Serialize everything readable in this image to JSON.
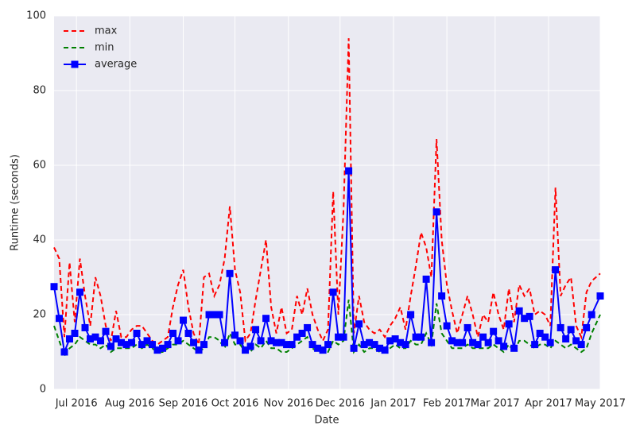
{
  "chart_data": {
    "type": "line",
    "xlabel": "Date",
    "ylabel": "Runtime (seconds)",
    "x": [
      "2016-06-18",
      "2016-06-21",
      "2016-06-24",
      "2016-06-27",
      "2016-06-30",
      "2016-07-03",
      "2016-07-06",
      "2016-07-09",
      "2016-07-12",
      "2016-07-15",
      "2016-07-18",
      "2016-07-21",
      "2016-07-24",
      "2016-07-27",
      "2016-07-30",
      "2016-08-02",
      "2016-08-05",
      "2016-08-08",
      "2016-08-11",
      "2016-08-14",
      "2016-08-17",
      "2016-08-20",
      "2016-08-23",
      "2016-08-26",
      "2016-08-29",
      "2016-09-01",
      "2016-09-04",
      "2016-09-07",
      "2016-09-10",
      "2016-09-13",
      "2016-09-16",
      "2016-09-19",
      "2016-09-22",
      "2016-09-25",
      "2016-09-28",
      "2016-10-01",
      "2016-10-04",
      "2016-10-07",
      "2016-10-10",
      "2016-10-13",
      "2016-10-16",
      "2016-10-19",
      "2016-10-22",
      "2016-10-25",
      "2016-10-28",
      "2016-10-31",
      "2016-11-03",
      "2016-11-06",
      "2016-11-09",
      "2016-11-12",
      "2016-11-15",
      "2016-11-18",
      "2016-11-21",
      "2016-11-24",
      "2016-11-27",
      "2016-11-30",
      "2016-12-03",
      "2016-12-06",
      "2016-12-09",
      "2016-12-12",
      "2016-12-15",
      "2016-12-18",
      "2016-12-21",
      "2016-12-24",
      "2016-12-27",
      "2016-12-30",
      "2017-01-02",
      "2017-01-05",
      "2017-01-08",
      "2017-01-11",
      "2017-01-14",
      "2017-01-17",
      "2017-01-20",
      "2017-01-23",
      "2017-01-26",
      "2017-01-29",
      "2017-02-01",
      "2017-02-04",
      "2017-02-07",
      "2017-02-10",
      "2017-02-13",
      "2017-02-16",
      "2017-02-19",
      "2017-02-22",
      "2017-02-25",
      "2017-02-28",
      "2017-03-03",
      "2017-03-06",
      "2017-03-09",
      "2017-03-12",
      "2017-03-15",
      "2017-03-18",
      "2017-03-21",
      "2017-03-24",
      "2017-03-27",
      "2017-03-30",
      "2017-04-02",
      "2017-04-05",
      "2017-04-08",
      "2017-04-11",
      "2017-04-14",
      "2017-04-17",
      "2017-04-20",
      "2017-04-23",
      "2017-04-26",
      "2017-05-01"
    ],
    "series": [
      {
        "name": "max",
        "color": "#ff0000",
        "linestyle": "dashed",
        "marker": null,
        "values": [
          38,
          35,
          14,
          34,
          18,
          35,
          25,
          17,
          30,
          25,
          17,
          13,
          21,
          14,
          14,
          16,
          17,
          17,
          15,
          13,
          12,
          13,
          14,
          22,
          28,
          32,
          22,
          15,
          12,
          30,
          31,
          25,
          28,
          35,
          49,
          32,
          26,
          13,
          15,
          24,
          32,
          40,
          22,
          15,
          22,
          15,
          16,
          25,
          20,
          27,
          20,
          16,
          13,
          16,
          53,
          20,
          48,
          94,
          15,
          25,
          18,
          16,
          15,
          16,
          14,
          17,
          19,
          22,
          16,
          25,
          33,
          42,
          38,
          30,
          67,
          40,
          28,
          21,
          15,
          20,
          25,
          20,
          14,
          20,
          18,
          26,
          20,
          16,
          27,
          18,
          28,
          25,
          27,
          20,
          21,
          20,
          17,
          54,
          25,
          28,
          30,
          17,
          14,
          26,
          29,
          31
        ]
      },
      {
        "name": "min",
        "color": "#008000",
        "linestyle": "dashed",
        "marker": null,
        "values": [
          17,
          13,
          9,
          11,
          12,
          14,
          13,
          12,
          12,
          11,
          12,
          10,
          11,
          11,
          11,
          11,
          12,
          11,
          12,
          11,
          10,
          10,
          11,
          12,
          12,
          13,
          12,
          11,
          10,
          11,
          14,
          14,
          13,
          11,
          15,
          12,
          12,
          10,
          10,
          12,
          11,
          13,
          11,
          11,
          10,
          10,
          11,
          12,
          13,
          14,
          11,
          10,
          10,
          10,
          13,
          12,
          13,
          24,
          10,
          12,
          10,
          11,
          11,
          10,
          10,
          11,
          12,
          11,
          11,
          13,
          12,
          12,
          15,
          12,
          23,
          15,
          13,
          11,
          11,
          11,
          12,
          11,
          11,
          11,
          11,
          12,
          11,
          10,
          12,
          10,
          13,
          13,
          12,
          11,
          12,
          12,
          11,
          13,
          12,
          11,
          12,
          11,
          10,
          11,
          15,
          20
        ]
      },
      {
        "name": "average",
        "color": "#0000ff",
        "linestyle": "solid",
        "marker": "square",
        "values": [
          27.5,
          19,
          10,
          13.5,
          15,
          26,
          16.5,
          13.5,
          14,
          13,
          15.5,
          11.5,
          13.5,
          12.5,
          12,
          12.5,
          15,
          12,
          13,
          12,
          10.5,
          11,
          12,
          15,
          13,
          18.5,
          15,
          12.5,
          10.5,
          12,
          20,
          20,
          20,
          12.5,
          31,
          14.5,
          13,
          10.5,
          11.5,
          16,
          13,
          19,
          13,
          12.5,
          12.5,
          12,
          12,
          14,
          15,
          16.5,
          12,
          11,
          10.5,
          12,
          26,
          14,
          14,
          58.5,
          11,
          17.5,
          12,
          12.5,
          12,
          11,
          10.5,
          13,
          13.5,
          12.5,
          12,
          20,
          14,
          14,
          29.5,
          12.5,
          47.5,
          25,
          17,
          13,
          12.5,
          12.5,
          16.5,
          12.5,
          12,
          14,
          12.5,
          15.5,
          13,
          11.5,
          17.5,
          11,
          21,
          19,
          19.5,
          12,
          15,
          14,
          12.5,
          32,
          16.5,
          13.5,
          16,
          13,
          12,
          16.5,
          20,
          25
        ]
      }
    ],
    "xlim": [
      "2016-06-18",
      "2017-05-01"
    ],
    "xticks": [
      {
        "value": "2016-07-01",
        "label": "Jul 2016"
      },
      {
        "value": "2016-08-01",
        "label": "Aug 2016"
      },
      {
        "value": "2016-09-01",
        "label": "Sep 2016"
      },
      {
        "value": "2016-10-01",
        "label": "Oct 2016"
      },
      {
        "value": "2016-11-01",
        "label": "Nov 2016"
      },
      {
        "value": "2016-12-01",
        "label": "Dec 2016"
      },
      {
        "value": "2017-01-01",
        "label": "Jan 2017"
      },
      {
        "value": "2017-02-01",
        "label": "Feb 2017"
      },
      {
        "value": "2017-03-01",
        "label": "Mar 2017"
      },
      {
        "value": "2017-04-01",
        "label": "Apr 2017"
      },
      {
        "value": "2017-05-01",
        "label": "May 2017"
      }
    ],
    "ylim": [
      0,
      100
    ],
    "yticks": [
      0,
      20,
      40,
      60,
      80,
      100
    ],
    "grid": true,
    "legend": "upper left",
    "background": "#eaeaf2"
  }
}
